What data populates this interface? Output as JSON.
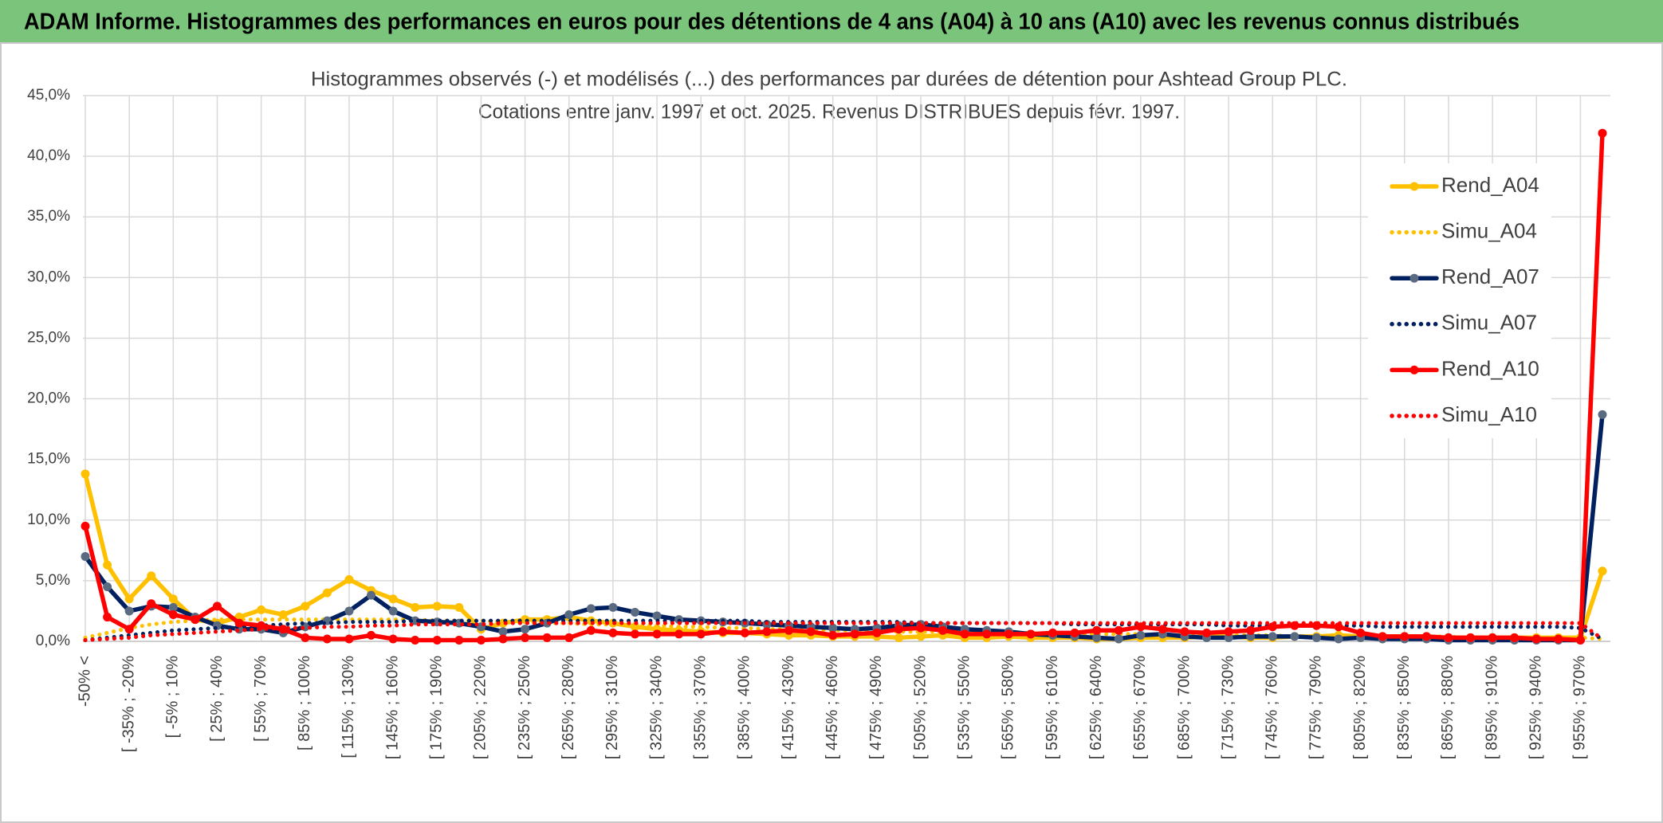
{
  "header": "ADAM Informe. Histogrammes des performances en euros pour des détentions de 4 ans (A04) à 10 ans (A10) avec les revenus connus distribués",
  "chart_data": {
    "type": "line",
    "title": "Histogrammes observés (-) et modélisés (...) des performances par durées de détention pour Ashtead Group PLC.",
    "subtitle": "Cotations entre janv. 1997 et oct. 2025. Revenus DISTRIBUES depuis févr. 1997.",
    "categories": [
      "-50% <",
      null,
      "[ -35% ; -20%",
      null,
      "[ -5% ; 10%",
      null,
      "[ 25% ; 40%",
      null,
      "[ 55% ; 70%",
      null,
      "[ 85% ; 100%",
      null,
      "[ 115% ; 130%",
      null,
      "[ 145% ; 160%",
      null,
      "[ 175% ; 190%",
      null,
      "[ 205% ; 220%",
      null,
      "[ 235% ; 250%",
      null,
      "[ 265% ; 280%",
      null,
      "[ 295% ; 310%",
      null,
      "[ 325% ; 340%",
      null,
      "[ 355% ; 370%",
      null,
      "[ 385% ; 400%",
      null,
      "[ 415% ; 430%",
      null,
      "[ 445% ; 460%",
      null,
      "[ 475% ; 490%",
      null,
      "[ 505% ; 520%",
      null,
      "[ 535% ; 550%",
      null,
      "[ 565% ; 580%",
      null,
      "[ 595% ; 610%",
      null,
      "[ 625% ; 640%",
      null,
      "[ 655% ; 670%",
      null,
      "[ 685% ; 700%",
      null,
      "[ 715% ; 730%",
      null,
      "[ 745% ; 760%",
      null,
      "[ 775% ; 790%",
      null,
      "[ 805% ; 820%",
      null,
      "[ 835% ; 850%",
      null,
      "[ 865% ; 880%",
      null,
      "[ 895% ; 910%",
      null,
      "[ 925% ; 940%",
      null,
      "[ 955% ; 970%",
      null
    ],
    "ylim": [
      0,
      45
    ],
    "yticks": [
      {
        "value": 0,
        "label": "0,0%"
      },
      {
        "value": 5,
        "label": "5,0%"
      },
      {
        "value": 10,
        "label": "10,0%"
      },
      {
        "value": 15,
        "label": "15,0%"
      },
      {
        "value": 20,
        "label": "20,0%"
      },
      {
        "value": 25,
        "label": "25,0%"
      },
      {
        "value": 30,
        "label": "30,0%"
      },
      {
        "value": 35,
        "label": "35,0%"
      },
      {
        "value": 40,
        "label": "40,0%"
      },
      {
        "value": 45,
        "label": "45,0%"
      }
    ],
    "grid": true,
    "legend": "right",
    "series": [
      {
        "name": "Rend_A04",
        "color": "#ffc000",
        "style": "solid",
        "markers": true,
        "marker_color": "#ffc000",
        "values": [
          13.8,
          6.3,
          3.5,
          5.4,
          3.5,
          1.8,
          1.5,
          2.0,
          2.6,
          2.2,
          2.9,
          4.0,
          5.1,
          4.2,
          3.5,
          2.8,
          2.9,
          2.8,
          1.0,
          1.5,
          1.8,
          1.8,
          2.0,
          1.7,
          1.5,
          1.2,
          1.0,
          0.9,
          0.8,
          0.7,
          0.7,
          0.6,
          0.5,
          0.5,
          0.4,
          0.4,
          0.4,
          0.3,
          0.4,
          0.5,
          0.3,
          0.3,
          0.4,
          0.3,
          0.3,
          0.3,
          0.2,
          0.2,
          0.3,
          0.3,
          0.3,
          0.4,
          0.4,
          0.3,
          0.3,
          0.4,
          0.4,
          0.5,
          0.4,
          0.4,
          0.4,
          0.4,
          0.3,
          0.3,
          0.3,
          0.3,
          0.3,
          0.3,
          0.3,
          5.8
        ]
      },
      {
        "name": "Simu_A04",
        "color": "#ffc000",
        "style": "dotted",
        "markers": false,
        "values": [
          0.3,
          0.7,
          1.1,
          1.4,
          1.6,
          1.7,
          1.8,
          1.8,
          1.8,
          1.8,
          1.8,
          1.8,
          1.8,
          1.8,
          1.8,
          1.8,
          1.7,
          1.7,
          1.7,
          1.6,
          1.6,
          1.5,
          1.5,
          1.4,
          1.4,
          1.3,
          1.3,
          1.2,
          1.2,
          1.1,
          1.1,
          1.0,
          1.0,
          1.0,
          0.9,
          0.9,
          0.9,
          0.8,
          0.8,
          0.8,
          0.7,
          0.7,
          0.7,
          0.7,
          0.6,
          0.6,
          0.6,
          0.6,
          0.6,
          0.5,
          0.5,
          0.5,
          0.5,
          0.5,
          0.5,
          0.4,
          0.4,
          0.4,
          0.4,
          0.4,
          0.4,
          0.4,
          0.4,
          0.3,
          0.3,
          0.3,
          0.3,
          0.3,
          0.3,
          0.2
        ]
      },
      {
        "name": "Rend_A07",
        "color": "#002060",
        "style": "solid",
        "markers": true,
        "marker_color": "#5a6a80",
        "values": [
          7.0,
          4.5,
          2.5,
          2.9,
          2.8,
          2.0,
          1.3,
          1.0,
          1.0,
          0.7,
          1.2,
          1.7,
          2.5,
          3.8,
          2.5,
          1.7,
          1.6,
          1.5,
          1.2,
          0.8,
          1.0,
          1.5,
          2.2,
          2.7,
          2.8,
          2.4,
          2.1,
          1.8,
          1.7,
          1.6,
          1.5,
          1.4,
          1.3,
          1.2,
          1.1,
          1.0,
          1.1,
          1.3,
          1.4,
          1.2,
          1.0,
          0.9,
          0.8,
          0.6,
          0.5,
          0.4,
          0.3,
          0.2,
          0.5,
          0.6,
          0.4,
          0.3,
          0.3,
          0.4,
          0.4,
          0.4,
          0.3,
          0.2,
          0.3,
          0.2,
          0.2,
          0.2,
          0.1,
          0.1,
          0.1,
          0.1,
          0.1,
          0.1,
          0.1,
          18.7
        ]
      },
      {
        "name": "Simu_A07",
        "color": "#002060",
        "style": "dotted",
        "markers": false,
        "values": [
          0.1,
          0.3,
          0.5,
          0.7,
          0.9,
          1.0,
          1.1,
          1.2,
          1.3,
          1.4,
          1.5,
          1.5,
          1.6,
          1.6,
          1.6,
          1.7,
          1.7,
          1.7,
          1.7,
          1.7,
          1.7,
          1.7,
          1.7,
          1.7,
          1.7,
          1.7,
          1.7,
          1.7,
          1.7,
          1.7,
          1.7,
          1.6,
          1.6,
          1.6,
          1.6,
          1.6,
          1.6,
          1.6,
          1.5,
          1.5,
          1.5,
          1.5,
          1.5,
          1.5,
          1.5,
          1.4,
          1.4,
          1.4,
          1.4,
          1.4,
          1.4,
          1.4,
          1.3,
          1.3,
          1.3,
          1.3,
          1.3,
          1.3,
          1.3,
          1.2,
          1.2,
          1.2,
          1.2,
          1.2,
          1.2,
          1.2,
          1.2,
          1.2,
          1.1,
          0.2
        ]
      },
      {
        "name": "Rend_A10",
        "color": "#ff0000",
        "style": "solid",
        "markers": true,
        "marker_color": "#ff0000",
        "values": [
          9.5,
          2.0,
          1.0,
          3.1,
          2.2,
          1.8,
          2.9,
          1.5,
          1.3,
          1.0,
          0.3,
          0.2,
          0.2,
          0.5,
          0.2,
          0.1,
          0.1,
          0.1,
          0.1,
          0.2,
          0.3,
          0.3,
          0.3,
          0.9,
          0.7,
          0.6,
          0.6,
          0.6,
          0.6,
          0.8,
          0.7,
          0.8,
          0.9,
          0.8,
          0.5,
          0.6,
          0.7,
          1.0,
          1.1,
          0.9,
          0.6,
          0.6,
          0.6,
          0.6,
          0.7,
          0.7,
          0.9,
          0.9,
          1.2,
          1.0,
          0.8,
          0.7,
          0.8,
          0.9,
          1.2,
          1.3,
          1.3,
          1.2,
          0.7,
          0.4,
          0.4,
          0.4,
          0.3,
          0.3,
          0.3,
          0.3,
          0.2,
          0.2,
          0.1,
          41.9
        ]
      },
      {
        "name": "Simu_A10",
        "color": "#ff0000",
        "style": "dotted",
        "markers": false,
        "values": [
          0.1,
          0.2,
          0.3,
          0.5,
          0.6,
          0.7,
          0.8,
          0.9,
          1.0,
          1.1,
          1.1,
          1.2,
          1.2,
          1.3,
          1.3,
          1.4,
          1.4,
          1.4,
          1.4,
          1.5,
          1.5,
          1.5,
          1.5,
          1.5,
          1.5,
          1.5,
          1.5,
          1.5,
          1.5,
          1.5,
          1.5,
          1.5,
          1.5,
          1.5,
          1.5,
          1.5,
          1.5,
          1.5,
          1.5,
          1.5,
          1.5,
          1.5,
          1.5,
          1.5,
          1.5,
          1.5,
          1.5,
          1.5,
          1.5,
          1.5,
          1.5,
          1.5,
          1.5,
          1.5,
          1.5,
          1.5,
          1.5,
          1.5,
          1.5,
          1.5,
          1.5,
          1.5,
          1.5,
          1.5,
          1.5,
          1.5,
          1.5,
          1.5,
          1.5,
          0.2
        ]
      }
    ]
  }
}
